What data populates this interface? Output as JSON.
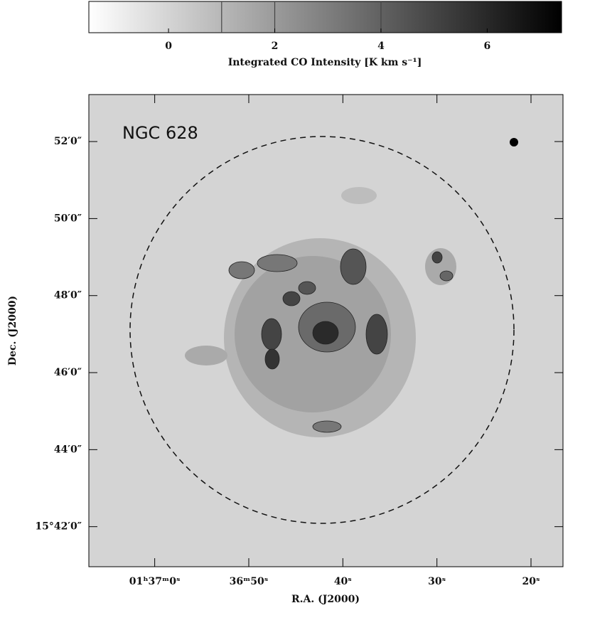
{
  "chart_data": {
    "type": "image",
    "colorbar_label": "Integrated CO Intensity [K km s⁻¹]",
    "clim": [
      -1.5,
      7.4
    ],
    "cticks": [
      0,
      2,
      4,
      6
    ],
    "contour_levels": [
      1,
      2,
      4
    ],
    "annotation": "NGC 628",
    "xlabel": "R.A. (J2000)",
    "ylabel": "Dec. (J2000)",
    "xlim": [
      67,
      16.6
    ],
    "xticks": [
      {
        "value": 60,
        "label": "01ʰ37ᵐ0ˢ"
      },
      {
        "value": 50,
        "label": "36ᵐ50ˢ"
      },
      {
        "value": 40,
        "label": "40ˢ"
      },
      {
        "value": 30,
        "label": "30ˢ"
      },
      {
        "value": 20,
        "label": "20ˢ"
      }
    ],
    "ylim": [
      40.96,
      53.22
    ],
    "yticks": [
      {
        "value": 52,
        "label": "52′0″"
      },
      {
        "value": 50,
        "label": "50′0″"
      },
      {
        "value": 48,
        "label": "48′0″"
      },
      {
        "value": 46,
        "label": "46′0″"
      },
      {
        "value": 44,
        "label": "44′0″"
      },
      {
        "value": 42,
        "label": "15°42′0″"
      }
    ]
  }
}
